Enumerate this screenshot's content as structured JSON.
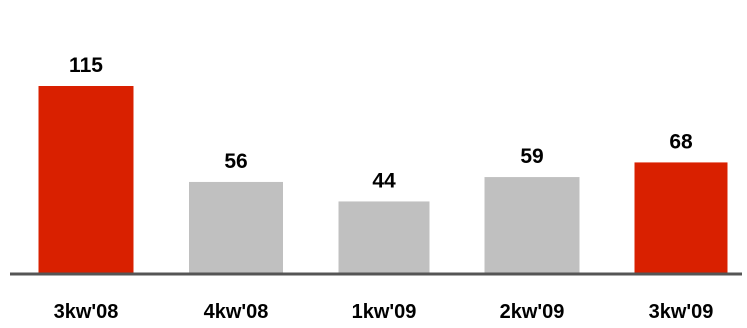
{
  "chart_data": {
    "type": "bar",
    "categories": [
      "3kw'08",
      "4kw'08",
      "1kw'09",
      "2kw'09",
      "3kw'09"
    ],
    "values": [
      115,
      56,
      44,
      59,
      68
    ],
    "data_labels": [
      "115",
      "56",
      "44",
      "59",
      "68"
    ],
    "colors": [
      "#d92000",
      "#c0c0c0",
      "#c0c0c0",
      "#c0c0c0",
      "#d92000"
    ],
    "axis_color": "#555555",
    "title": "",
    "xlabel": "",
    "ylabel": "",
    "ylim": [
      0,
      115
    ],
    "grid": false,
    "legend": "none"
  }
}
